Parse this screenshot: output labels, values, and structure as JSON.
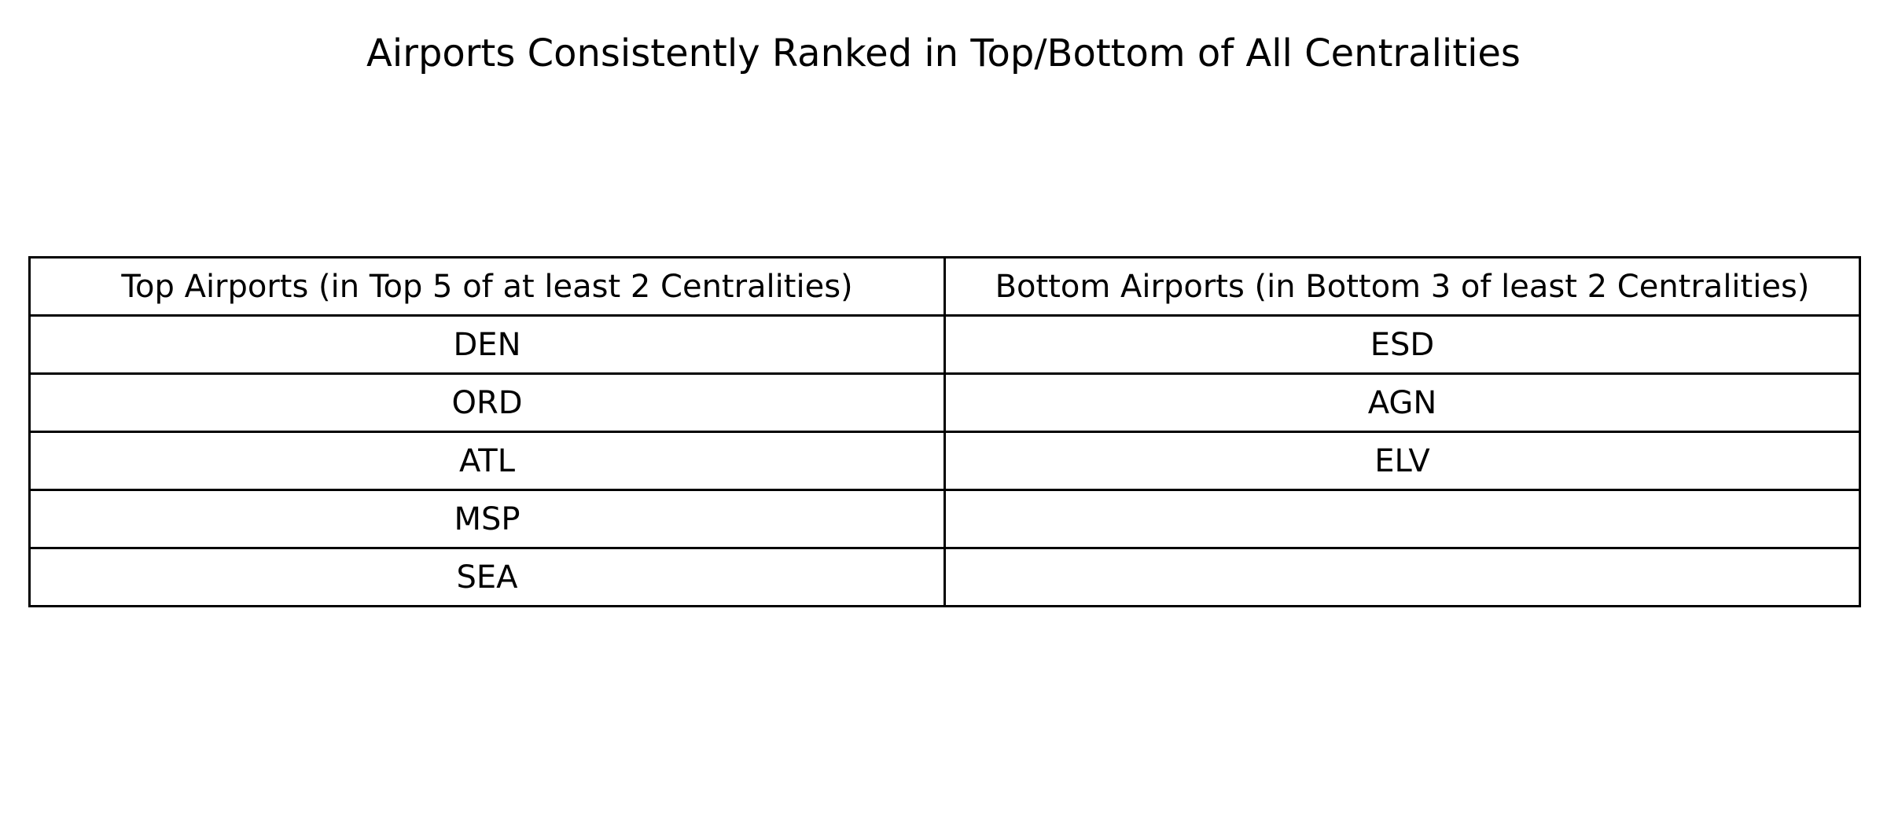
{
  "chart_data": {
    "type": "table",
    "title": "Airports Consistently Ranked in Top/Bottom of All Centralities",
    "columns": [
      "Top Airports (in Top 5 of at least 2 Centralities)",
      "Bottom Airports (in Bottom 3 of least 2 Centralities)"
    ],
    "rows": [
      [
        "DEN",
        "ESD"
      ],
      [
        "ORD",
        "AGN"
      ],
      [
        "ATL",
        "ELV"
      ],
      [
        "MSP",
        ""
      ],
      [
        "SEA",
        ""
      ]
    ]
  }
}
